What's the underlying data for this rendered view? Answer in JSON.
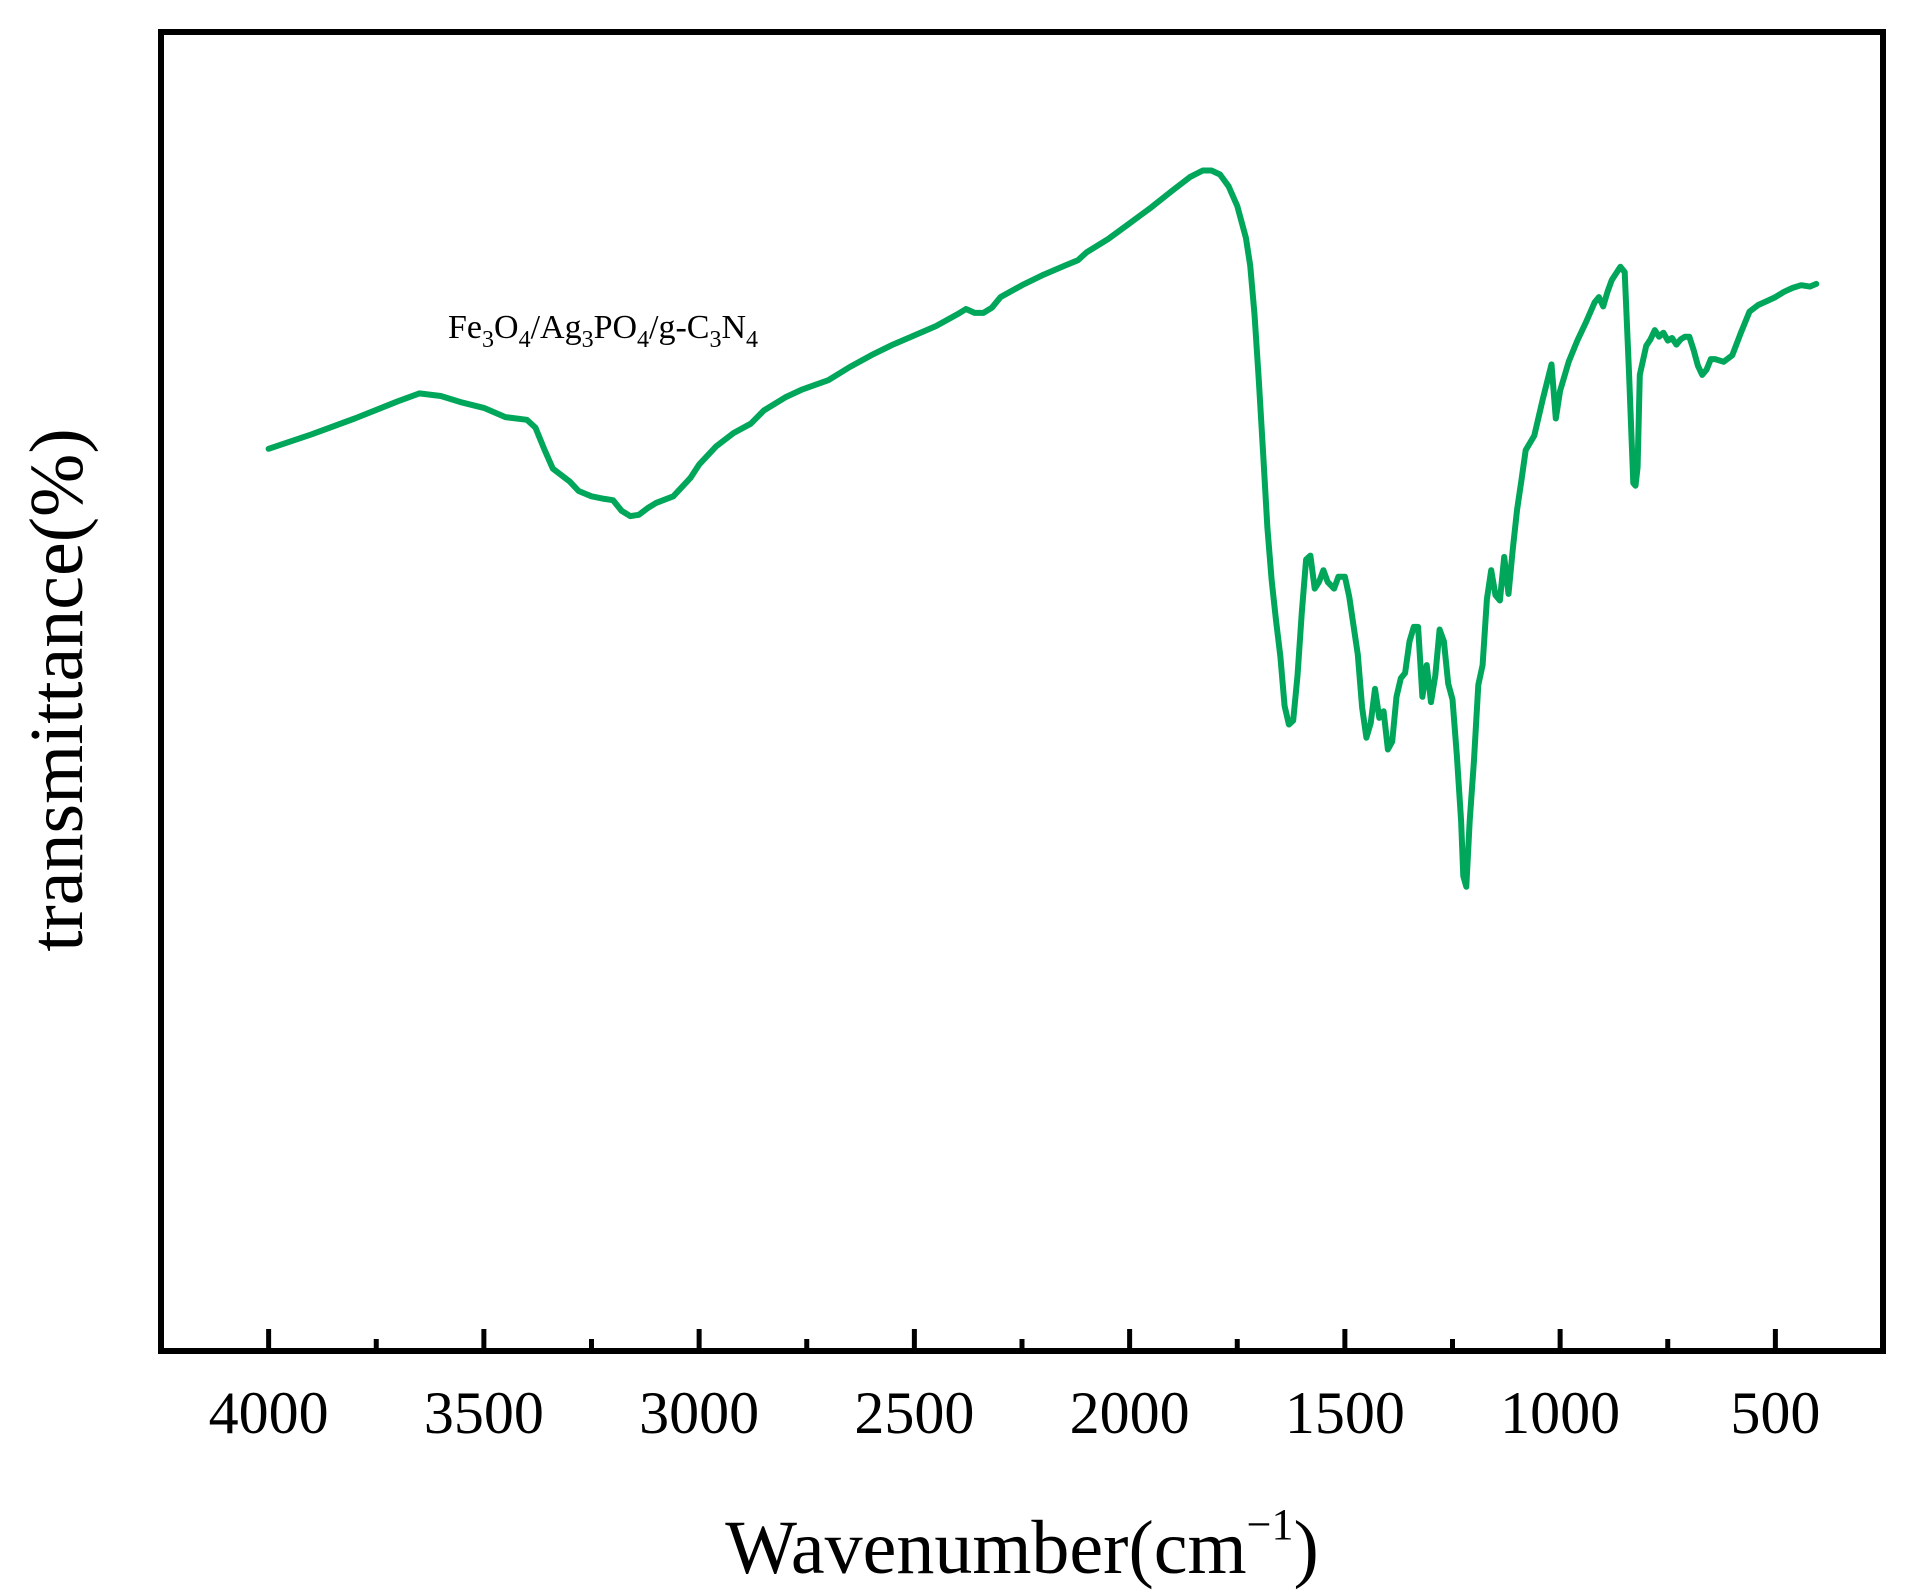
{
  "chart_data": {
    "type": "line",
    "title": "",
    "xlabel": "Wavenumber(cm",
    "xlabel_sup": "−1",
    "xlabel_close": ")",
    "ylabel": "transmittance(%)",
    "xlim": [
      4250,
      250
    ],
    "ylim": [
      0,
      100
    ],
    "x_reversed": true,
    "grid": false,
    "y_ticks_shown": false,
    "x_ticks": [
      4000,
      3500,
      3000,
      2500,
      2000,
      1500,
      1000,
      500
    ],
    "x_tick_labels": [
      "4000",
      "3500",
      "3000",
      "2500",
      "2000",
      "1500",
      "1000",
      "500"
    ],
    "x_minor_ticks": [
      3750,
      3250,
      2750,
      2250,
      1750,
      1250,
      750
    ],
    "annotation": {
      "parts": [
        {
          "t": "Fe",
          "sub": false
        },
        {
          "t": "3",
          "sub": true
        },
        {
          "t": "O",
          "sub": false
        },
        {
          "t": "4",
          "sub": true
        },
        {
          "t": "/Ag",
          "sub": false
        },
        {
          "t": "3",
          "sub": true
        },
        {
          "t": "PO",
          "sub": false
        },
        {
          "t": "4",
          "sub": true
        },
        {
          "t": "/g-C",
          "sub": false
        },
        {
          "t": "3",
          "sub": true
        },
        {
          "t": "N",
          "sub": false
        },
        {
          "t": "4",
          "sub": true
        }
      ]
    },
    "series": [
      {
        "color": "#00a65a",
        "points": [
          [
            4000,
            68.4
          ],
          [
            3900,
            69.5
          ],
          [
            3800,
            70.7
          ],
          [
            3700,
            72.0
          ],
          [
            3650,
            72.6
          ],
          [
            3600,
            72.4
          ],
          [
            3550,
            71.9
          ],
          [
            3500,
            71.5
          ],
          [
            3450,
            70.8
          ],
          [
            3400,
            70.6
          ],
          [
            3380,
            70.0
          ],
          [
            3360,
            68.4
          ],
          [
            3340,
            66.9
          ],
          [
            3300,
            65.9
          ],
          [
            3280,
            65.2
          ],
          [
            3250,
            64.8
          ],
          [
            3220,
            64.6
          ],
          [
            3200,
            64.5
          ],
          [
            3180,
            63.7
          ],
          [
            3160,
            63.3
          ],
          [
            3140,
            63.4
          ],
          [
            3120,
            63.9
          ],
          [
            3100,
            64.3
          ],
          [
            3060,
            64.8
          ],
          [
            3020,
            66.2
          ],
          [
            3000,
            67.2
          ],
          [
            2960,
            68.6
          ],
          [
            2920,
            69.6
          ],
          [
            2880,
            70.3
          ],
          [
            2850,
            71.3
          ],
          [
            2800,
            72.3
          ],
          [
            2760,
            72.9
          ],
          [
            2700,
            73.6
          ],
          [
            2650,
            74.6
          ],
          [
            2600,
            75.5
          ],
          [
            2550,
            76.3
          ],
          [
            2500,
            77.0
          ],
          [
            2450,
            77.7
          ],
          [
            2400,
            78.6
          ],
          [
            2380,
            79.0
          ],
          [
            2360,
            78.7
          ],
          [
            2340,
            78.7
          ],
          [
            2320,
            79.1
          ],
          [
            2300,
            79.9
          ],
          [
            2250,
            80.8
          ],
          [
            2200,
            81.6
          ],
          [
            2150,
            82.3
          ],
          [
            2120,
            82.7
          ],
          [
            2100,
            83.3
          ],
          [
            2050,
            84.3
          ],
          [
            2000,
            85.5
          ],
          [
            1950,
            86.7
          ],
          [
            1900,
            88.0
          ],
          [
            1860,
            89.0
          ],
          [
            1830,
            89.5
          ],
          [
            1810,
            89.5
          ],
          [
            1790,
            89.2
          ],
          [
            1770,
            88.3
          ],
          [
            1750,
            86.8
          ],
          [
            1730,
            84.4
          ],
          [
            1720,
            82.3
          ],
          [
            1710,
            78.6
          ],
          [
            1700,
            73.6
          ],
          [
            1690,
            68.1
          ],
          [
            1680,
            62.4
          ],
          [
            1670,
            58.4
          ],
          [
            1660,
            55.4
          ],
          [
            1650,
            52.7
          ],
          [
            1640,
            48.9
          ],
          [
            1630,
            47.5
          ],
          [
            1620,
            47.8
          ],
          [
            1610,
            51.2
          ],
          [
            1600,
            56.0
          ],
          [
            1590,
            60.0
          ],
          [
            1580,
            60.3
          ],
          [
            1570,
            57.8
          ],
          [
            1560,
            58.3
          ],
          [
            1550,
            59.2
          ],
          [
            1540,
            58.3
          ],
          [
            1525,
            57.8
          ],
          [
            1515,
            58.7
          ],
          [
            1500,
            58.7
          ],
          [
            1490,
            57.2
          ],
          [
            1480,
            55.0
          ],
          [
            1470,
            52.8
          ],
          [
            1460,
            48.8
          ],
          [
            1450,
            46.5
          ],
          [
            1440,
            47.6
          ],
          [
            1430,
            50.2
          ],
          [
            1420,
            48.0
          ],
          [
            1410,
            48.5
          ],
          [
            1400,
            45.6
          ],
          [
            1390,
            46.2
          ],
          [
            1380,
            49.6
          ],
          [
            1370,
            51.0
          ],
          [
            1360,
            51.4
          ],
          [
            1350,
            53.8
          ],
          [
            1340,
            54.9
          ],
          [
            1330,
            54.9
          ],
          [
            1320,
            49.6
          ],
          [
            1310,
            52.0
          ],
          [
            1300,
            49.2
          ],
          [
            1290,
            51.2
          ],
          [
            1280,
            54.7
          ],
          [
            1270,
            53.8
          ],
          [
            1260,
            50.6
          ],
          [
            1250,
            49.4
          ],
          [
            1240,
            45.2
          ],
          [
            1230,
            40.2
          ],
          [
            1225,
            36.0
          ],
          [
            1218,
            35.2
          ],
          [
            1210,
            40.2
          ],
          [
            1200,
            44.8
          ],
          [
            1190,
            50.5
          ],
          [
            1180,
            52.0
          ],
          [
            1170,
            57.0
          ],
          [
            1160,
            59.2
          ],
          [
            1150,
            57.3
          ],
          [
            1140,
            56.9
          ],
          [
            1130,
            60.2
          ],
          [
            1120,
            57.4
          ],
          [
            1110,
            60.8
          ],
          [
            1100,
            63.8
          ],
          [
            1090,
            66.0
          ],
          [
            1080,
            68.3
          ],
          [
            1060,
            69.4
          ],
          [
            1040,
            72.2
          ],
          [
            1020,
            74.8
          ],
          [
            1010,
            70.7
          ],
          [
            1000,
            72.8
          ],
          [
            980,
            75.0
          ],
          [
            960,
            76.6
          ],
          [
            940,
            78.0
          ],
          [
            920,
            79.5
          ],
          [
            910,
            79.9
          ],
          [
            900,
            79.2
          ],
          [
            890,
            80.3
          ],
          [
            880,
            81.2
          ],
          [
            860,
            82.2
          ],
          [
            850,
            81.8
          ],
          [
            840,
            74.2
          ],
          [
            830,
            65.8
          ],
          [
            825,
            65.6
          ],
          [
            820,
            67.0
          ],
          [
            815,
            74.0
          ],
          [
            800,
            76.2
          ],
          [
            790,
            76.7
          ],
          [
            780,
            77.4
          ],
          [
            770,
            76.9
          ],
          [
            760,
            77.2
          ],
          [
            750,
            76.6
          ],
          [
            740,
            76.8
          ],
          [
            730,
            76.3
          ],
          [
            720,
            76.7
          ],
          [
            710,
            76.9
          ],
          [
            700,
            76.9
          ],
          [
            690,
            75.9
          ],
          [
            680,
            74.7
          ],
          [
            670,
            74.0
          ],
          [
            660,
            74.4
          ],
          [
            650,
            75.2
          ],
          [
            640,
            75.2
          ],
          [
            620,
            75.0
          ],
          [
            600,
            75.5
          ],
          [
            580,
            77.2
          ],
          [
            560,
            78.8
          ],
          [
            540,
            79.3
          ],
          [
            520,
            79.6
          ],
          [
            500,
            79.9
          ],
          [
            480,
            80.3
          ],
          [
            460,
            80.6
          ],
          [
            440,
            80.8
          ],
          [
            420,
            80.7
          ],
          [
            405,
            80.9
          ]
        ]
      }
    ]
  }
}
